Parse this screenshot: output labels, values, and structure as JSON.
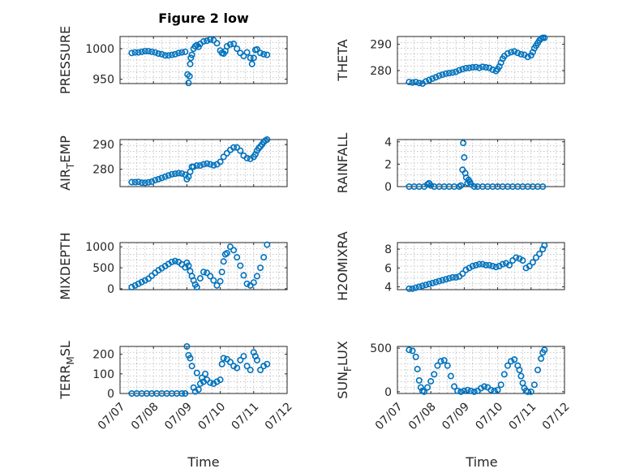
{
  "figure": {
    "title": "Figure 2 low",
    "marker_color": "#0072BD",
    "x_axis": {
      "label": "Time",
      "tick_labels": [
        "07/07",
        "07/08",
        "07/09",
        "07/10",
        "07/11",
        "07/12"
      ]
    }
  },
  "chart_data": [
    {
      "id": "pressure",
      "type": "scatter",
      "title": "Figure 2 low",
      "ylabel": "PRESSURE",
      "ylim": [
        943,
        1020
      ],
      "yticks": [
        950,
        1000
      ],
      "xlim": [
        0,
        5
      ],
      "xticks": [
        0,
        1,
        2,
        3,
        4,
        5
      ],
      "grid": true,
      "x": [
        0.35,
        0.45,
        0.55,
        0.65,
        0.75,
        0.85,
        0.95,
        1.05,
        1.15,
        1.25,
        1.35,
        1.45,
        1.55,
        1.65,
        1.75,
        1.85,
        1.95,
        2.02,
        2.05,
        2.08,
        2.1,
        2.12,
        2.15,
        2.2,
        2.25,
        2.3,
        2.35,
        2.4,
        2.5,
        2.6,
        2.7,
        2.8,
        2.9,
        3.0,
        3.05,
        3.1,
        3.15,
        3.2,
        3.3,
        3.4,
        3.5,
        3.6,
        3.7,
        3.8,
        3.9,
        3.95,
        4.0,
        4.05,
        4.1,
        4.2,
        4.3,
        4.4
      ],
      "y": [
        993,
        994,
        994,
        995,
        996,
        996,
        995,
        994,
        992,
        991,
        989,
        989,
        990,
        991,
        993,
        994,
        995,
        958,
        944,
        955,
        975,
        985,
        990,
        1000,
        1004,
        1006,
        1003,
        1008,
        1012,
        1013,
        1015,
        1014,
        1009,
        997,
        993,
        992,
        996,
        1004,
        1007,
        1008,
        1000,
        993,
        988,
        994,
        985,
        975,
        985,
        998,
        999,
        993,
        991,
        990
      ]
    },
    {
      "id": "theta",
      "type": "scatter",
      "ylabel": "THETA",
      "ylim": [
        275,
        293
      ],
      "yticks": [
        280,
        290
      ],
      "xlim": [
        0,
        5
      ],
      "xticks": [
        0,
        1,
        2,
        3,
        4,
        5
      ],
      "grid": true,
      "x": [
        0.35,
        0.45,
        0.55,
        0.65,
        0.75,
        0.85,
        0.95,
        1.05,
        1.15,
        1.25,
        1.35,
        1.45,
        1.55,
        1.65,
        1.75,
        1.85,
        1.95,
        2.05,
        2.15,
        2.25,
        2.35,
        2.45,
        2.55,
        2.65,
        2.75,
        2.85,
        2.95,
        3.0,
        3.05,
        3.1,
        3.15,
        3.2,
        3.3,
        3.4,
        3.5,
        3.6,
        3.7,
        3.8,
        3.9,
        4.0,
        4.05,
        4.1,
        4.15,
        4.2,
        4.25,
        4.3,
        4.35,
        4.4
      ],
      "y": [
        275.6,
        275.4,
        275.6,
        275.2,
        275.0,
        275.8,
        276.4,
        276.9,
        277.4,
        278.0,
        278.4,
        278.8,
        279.0,
        279.2,
        279.5,
        280.1,
        280.5,
        280.9,
        281.0,
        281.2,
        281.3,
        281.0,
        281.4,
        281.2,
        281.0,
        280.3,
        279.8,
        280.5,
        281.5,
        283.0,
        284.5,
        285.5,
        286.5,
        287.0,
        287.3,
        286.7,
        286.2,
        286.0,
        285.2,
        285.8,
        287.0,
        288.5,
        289.5,
        290.5,
        291.5,
        292.2,
        292.5,
        292.5
      ]
    },
    {
      "id": "air_temp",
      "type": "scatter",
      "ylabel": "AIR_TEMP",
      "ylabel_parts": [
        "AIR",
        "T",
        "EMP"
      ],
      "ylim": [
        273,
        292
      ],
      "yticks": [
        280,
        290
      ],
      "xlim": [
        0,
        5
      ],
      "xticks": [
        0,
        1,
        2,
        3,
        4,
        5
      ],
      "grid": true,
      "x": [
        0.35,
        0.45,
        0.55,
        0.65,
        0.75,
        0.85,
        0.95,
        1.05,
        1.15,
        1.25,
        1.35,
        1.45,
        1.55,
        1.65,
        1.75,
        1.85,
        1.95,
        2.0,
        2.05,
        2.1,
        2.15,
        2.2,
        2.3,
        2.4,
        2.5,
        2.6,
        2.7,
        2.8,
        2.9,
        3.0,
        3.1,
        3.2,
        3.3,
        3.4,
        3.5,
        3.6,
        3.7,
        3.8,
        3.9,
        4.0,
        4.05,
        4.1,
        4.15,
        4.2,
        4.25,
        4.3,
        4.35,
        4.4
      ],
      "y": [
        274.8,
        274.8,
        274.9,
        274.6,
        274.5,
        274.7,
        275.0,
        275.6,
        276.0,
        276.5,
        277.0,
        277.5,
        278.0,
        278.2,
        278.4,
        278.3,
        277.8,
        276.0,
        277.0,
        279.0,
        281.0,
        281.0,
        281.5,
        281.5,
        282.0,
        282.3,
        282.0,
        281.6,
        282.0,
        283.0,
        285.0,
        286.5,
        287.8,
        288.8,
        288.8,
        287.5,
        285.5,
        284.5,
        284.2,
        285.0,
        286.0,
        287.5,
        288.5,
        289.2,
        290.0,
        291.0,
        291.6,
        292.0
      ]
    },
    {
      "id": "rainfall",
      "type": "scatter",
      "ylabel": "RAINFALL",
      "ylim": [
        0,
        4.2
      ],
      "yticks": [
        0,
        2,
        4
      ],
      "xlim": [
        0,
        5
      ],
      "xticks": [
        0,
        1,
        2,
        3,
        4,
        5
      ],
      "grid": true,
      "x": [
        0.35,
        0.5,
        0.65,
        0.8,
        0.9,
        0.95,
        1.0,
        1.1,
        1.25,
        1.4,
        1.55,
        1.7,
        1.85,
        1.9,
        1.95,
        1.97,
        2.0,
        2.03,
        2.06,
        2.1,
        2.13,
        2.17,
        2.2,
        2.3,
        2.4,
        2.55,
        2.7,
        2.85,
        3.0,
        3.15,
        3.3,
        3.45,
        3.6,
        3.75,
        3.9,
        4.05,
        4.2,
        4.35
      ],
      "y": [
        0,
        0,
        0,
        0,
        0.2,
        0.3,
        0.1,
        0,
        0,
        0,
        0,
        0,
        0,
        0.1,
        1.5,
        3.9,
        2.6,
        1.2,
        0.8,
        0.3,
        0.6,
        0.4,
        0.2,
        0,
        0,
        0,
        0,
        0,
        0,
        0,
        0,
        0,
        0,
        0,
        0,
        0,
        0,
        0
      ]
    },
    {
      "id": "mixdepth",
      "type": "scatter",
      "ylabel": "MIXDEPTH",
      "ylim": [
        -20,
        1100
      ],
      "yticks": [
        0,
        500,
        1000
      ],
      "xlim": [
        0,
        5
      ],
      "xticks": [
        0,
        1,
        2,
        3,
        4,
        5
      ],
      "grid": true,
      "x": [
        0.35,
        0.45,
        0.55,
        0.65,
        0.75,
        0.85,
        0.95,
        1.05,
        1.15,
        1.25,
        1.35,
        1.45,
        1.55,
        1.65,
        1.75,
        1.85,
        1.95,
        2.0,
        2.05,
        2.1,
        2.15,
        2.2,
        2.25,
        2.3,
        2.4,
        2.5,
        2.6,
        2.7,
        2.8,
        2.9,
        3.0,
        3.05,
        3.1,
        3.15,
        3.2,
        3.3,
        3.4,
        3.5,
        3.6,
        3.7,
        3.8,
        3.9,
        4.0,
        4.1,
        4.2,
        4.3,
        4.4
      ],
      "y": [
        40,
        80,
        120,
        160,
        200,
        240,
        310,
        380,
        440,
        490,
        540,
        590,
        640,
        660,
        640,
        580,
        510,
        620,
        550,
        420,
        300,
        200,
        100,
        40,
        250,
        400,
        380,
        300,
        200,
        80,
        180,
        400,
        650,
        820,
        850,
        1000,
        920,
        750,
        550,
        320,
        120,
        80,
        150,
        300,
        500,
        750,
        1050
      ]
    },
    {
      "id": "h2omixra",
      "type": "scatter",
      "ylabel": "H2OMIXRA",
      "ylim": [
        3.7,
        8.7
      ],
      "yticks": [
        4,
        6,
        8
      ],
      "xlim": [
        0,
        5
      ],
      "xticks": [
        0,
        1,
        2,
        3,
        4,
        5
      ],
      "grid": true,
      "x": [
        0.35,
        0.45,
        0.55,
        0.65,
        0.75,
        0.85,
        0.95,
        1.05,
        1.15,
        1.25,
        1.35,
        1.45,
        1.55,
        1.65,
        1.75,
        1.85,
        1.95,
        2.05,
        2.15,
        2.25,
        2.35,
        2.45,
        2.55,
        2.65,
        2.75,
        2.85,
        2.95,
        3.05,
        3.15,
        3.25,
        3.35,
        3.45,
        3.55,
        3.65,
        3.75,
        3.85,
        3.95,
        4.05,
        4.15,
        4.25,
        4.35,
        4.4
      ],
      "y": [
        3.8,
        3.8,
        3.9,
        4.0,
        4.1,
        4.2,
        4.3,
        4.4,
        4.5,
        4.6,
        4.7,
        4.8,
        4.9,
        5.0,
        5.0,
        5.1,
        5.4,
        5.8,
        6.0,
        6.2,
        6.3,
        6.4,
        6.4,
        6.3,
        6.3,
        6.2,
        6.1,
        6.2,
        6.4,
        6.5,
        6.3,
        6.8,
        7.1,
        7.0,
        6.8,
        6.0,
        6.2,
        6.6,
        7.1,
        7.5,
        8.0,
        8.4
      ]
    },
    {
      "id": "terr_msl",
      "type": "scatter",
      "ylabel": "TERR_MSL",
      "ylabel_parts": [
        "TERR",
        "M",
        "SL"
      ],
      "ylim": [
        0,
        240
      ],
      "yticks": [
        0,
        100,
        200
      ],
      "xlim": [
        0,
        5
      ],
      "xticks": [
        0,
        1,
        2,
        3,
        4,
        5
      ],
      "grid": true,
      "x": [
        0.35,
        0.5,
        0.65,
        0.8,
        0.95,
        1.1,
        1.25,
        1.4,
        1.55,
        1.7,
        1.85,
        1.95,
        2.0,
        2.05,
        2.1,
        2.15,
        2.2,
        2.25,
        2.3,
        2.35,
        2.4,
        2.45,
        2.5,
        2.55,
        2.6,
        2.7,
        2.8,
        2.9,
        3.0,
        3.05,
        3.1,
        3.2,
        3.3,
        3.4,
        3.5,
        3.6,
        3.7,
        3.8,
        3.9,
        4.0,
        4.05,
        4.1,
        4.2,
        4.3,
        4.4
      ],
      "y": [
        0,
        0,
        0,
        0,
        0,
        0,
        0,
        0,
        0,
        0,
        0,
        0,
        240,
        195,
        180,
        140,
        30,
        10,
        105,
        20,
        50,
        80,
        60,
        100,
        70,
        55,
        50,
        60,
        70,
        150,
        180,
        175,
        160,
        140,
        130,
        170,
        190,
        140,
        120,
        210,
        190,
        170,
        120,
        140,
        150
      ]
    },
    {
      "id": "sun_flux",
      "type": "scatter",
      "ylabel": "SUN_FLUX",
      "ylabel_parts": [
        "SUN",
        "F",
        "LUX"
      ],
      "ylim": [
        -20,
        520
      ],
      "yticks": [
        0,
        500
      ],
      "xlim": [
        0,
        5
      ],
      "xticks": [
        0,
        1,
        2,
        3,
        4,
        5
      ],
      "grid": true,
      "x": [
        0.35,
        0.45,
        0.55,
        0.6,
        0.65,
        0.7,
        0.75,
        0.8,
        0.9,
        1.0,
        1.1,
        1.2,
        1.3,
        1.4,
        1.5,
        1.6,
        1.7,
        1.8,
        1.9,
        2.0,
        2.1,
        2.2,
        2.3,
        2.4,
        2.5,
        2.6,
        2.7,
        2.8,
        2.9,
        3.0,
        3.1,
        3.2,
        3.3,
        3.4,
        3.5,
        3.6,
        3.65,
        3.7,
        3.75,
        3.8,
        3.85,
        3.9,
        4.0,
        4.1,
        4.2,
        4.3,
        4.35,
        4.4
      ],
      "y": [
        480,
        470,
        400,
        260,
        130,
        50,
        10,
        0,
        50,
        120,
        200,
        300,
        350,
        360,
        300,
        180,
        60,
        10,
        0,
        10,
        20,
        10,
        0,
        10,
        40,
        60,
        50,
        20,
        10,
        20,
        80,
        200,
        300,
        350,
        370,
        300,
        250,
        180,
        100,
        40,
        10,
        0,
        0,
        80,
        250,
        380,
        450,
        480
      ]
    }
  ]
}
